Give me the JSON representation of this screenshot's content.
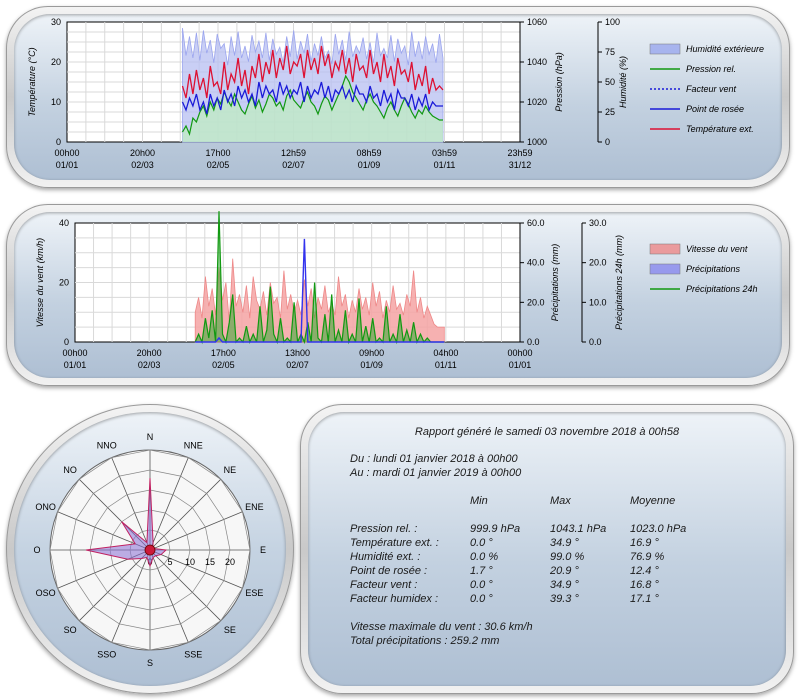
{
  "chart_data": [
    {
      "type": "line",
      "y_left_label": "Température (°C)",
      "y_right1_label": "Pression (hPa)",
      "y_right2_label": "Humidité (%)",
      "y_left_ticks": [
        "0",
        "10",
        "20",
        "30"
      ],
      "y_right1_ticks": [
        "1000",
        "1020",
        "1040",
        "1060"
      ],
      "y_right2_ticks": [
        "0",
        "25",
        "50",
        "75",
        "100"
      ],
      "ylim_left": [
        0,
        30
      ],
      "ylim_pressure": [
        1000,
        1060
      ],
      "ylim_humidity": [
        0,
        100
      ],
      "x_ticks": [
        {
          "time": "00h00",
          "date": "01/01"
        },
        {
          "time": "20h00",
          "date": "02/03"
        },
        {
          "time": "17h00",
          "date": "02/05"
        },
        {
          "time": "12h59",
          "date": "02/07"
        },
        {
          "time": "08h59",
          "date": "01/09"
        },
        {
          "time": "03h59",
          "date": "01/11"
        },
        {
          "time": "23h59",
          "date": "31/12"
        }
      ],
      "grid": true,
      "legend": [
        {
          "name": "Humidité extérieure",
          "color": "#9aa8ee",
          "style": "area"
        },
        {
          "name": "Pression rel.",
          "color": "#119911",
          "style": "line"
        },
        {
          "name": "Facteur vent",
          "color": "#1a1ad8",
          "style": "dotted"
        },
        {
          "name": "Point de rosée",
          "color": "#1a1ad8",
          "style": "line"
        },
        {
          "name": "Température ext.",
          "color": "#dd1133",
          "style": "line"
        }
      ],
      "data_start_fraction": 0.255,
      "data_end_fraction": 0.83,
      "series": {
        "humidity_pct": [
          95,
          72,
          88,
          70,
          91,
          68,
          93,
          74,
          85,
          66,
          90,
          78,
          82,
          64,
          88,
          72,
          92,
          70,
          80,
          67,
          89,
          75,
          84,
          70,
          91,
          68,
          86,
          73,
          79,
          66,
          88,
          71,
          93,
          69,
          84,
          74,
          90,
          67,
          82,
          72,
          88,
          70,
          76,
          65,
          90,
          73,
          85,
          68,
          92,
          71,
          80,
          74,
          87,
          69,
          83,
          66,
          91,
          72,
          78,
          70,
          89,
          67,
          86,
          74,
          80,
          64,
          92,
          71,
          84,
          69,
          88,
          73,
          82,
          66,
          90,
          70
        ],
        "temperature_c": [
          14,
          11,
          17,
          12,
          18,
          13,
          16,
          11,
          19,
          14,
          15,
          12,
          20,
          13,
          17,
          15,
          21,
          14,
          18,
          12,
          19,
          16,
          22,
          15,
          20,
          17,
          23,
          16,
          21,
          18,
          24,
          17,
          20,
          19,
          22,
          16,
          23,
          18,
          21,
          17,
          24,
          19,
          22,
          16,
          20,
          18,
          23,
          17,
          21,
          15,
          22,
          18,
          19,
          16,
          23,
          17,
          20,
          15,
          22,
          16,
          19,
          14,
          21,
          17,
          18,
          15,
          20,
          13,
          17,
          14,
          19,
          12,
          16,
          13,
          14,
          13
        ],
        "dewpoint_c": [
          10,
          8,
          11,
          9,
          12,
          8,
          10,
          7,
          12,
          9,
          11,
          8,
          13,
          10,
          12,
          9,
          14,
          11,
          13,
          10,
          12,
          9,
          15,
          11,
          14,
          12,
          13,
          10,
          15,
          12,
          14,
          11,
          13,
          12,
          15,
          10,
          14,
          11,
          13,
          12,
          15,
          11,
          14,
          10,
          13,
          12,
          14,
          11,
          13,
          10,
          14,
          12,
          12,
          10,
          14,
          11,
          12,
          9,
          13,
          10,
          12,
          8,
          13,
          11,
          11,
          9,
          12,
          8,
          11,
          9,
          12,
          8,
          10,
          9,
          9,
          9
        ],
        "pressure_hpa": [
          1005,
          1008,
          1004,
          1012,
          1010,
          1015,
          1018,
          1013,
          1020,
          1016,
          1022,
          1019,
          1025,
          1021,
          1018,
          1024,
          1020,
          1016,
          1014,
          1019,
          1023,
          1017,
          1021,
          1015,
          1019,
          1024,
          1022,
          1018,
          1020,
          1016,
          1023,
          1026,
          1021,
          1019,
          1017,
          1022,
          1025,
          1020,
          1018,
          1014,
          1019,
          1023,
          1021,
          1016,
          1020,
          1024,
          1028,
          1033,
          1030,
          1025,
          1022,
          1019,
          1016,
          1021,
          1024,
          1020,
          1018,
          1015,
          1012,
          1017,
          1020,
          1016,
          1013,
          1018,
          1022,
          1019,
          1015,
          1012,
          1016,
          1014,
          1018,
          1015,
          1013,
          1012,
          1011,
          1011
        ]
      }
    },
    {
      "type": "area",
      "y_left_label": "Vitesse du vent (km/h)",
      "y_right1_label": "Précipitations (mm)",
      "y_right2_label": "Précipitations 24h (mm)",
      "y_left_ticks": [
        "0",
        "20",
        "40"
      ],
      "y_right1_ticks": [
        "0.0",
        "20.0",
        "40.0",
        "60.0"
      ],
      "y_right2_ticks": [
        "0.0",
        "10.0",
        "20.0",
        "30.0"
      ],
      "ylim_left": [
        0,
        40
      ],
      "ylim_rain": [
        0,
        60
      ],
      "ylim_rain24": [
        0,
        30
      ],
      "x_ticks": [
        {
          "time": "00h00",
          "date": "01/01"
        },
        {
          "time": "20h00",
          "date": "02/03"
        },
        {
          "time": "17h00",
          "date": "02/05"
        },
        {
          "time": "13h00",
          "date": "02/07"
        },
        {
          "time": "09h00",
          "date": "01/09"
        },
        {
          "time": "04h00",
          "date": "01/11"
        },
        {
          "time": "00h00",
          "date": "01/01"
        }
      ],
      "grid": true,
      "legend": [
        {
          "name": "Vitesse du vent",
          "color": "#ee8888",
          "style": "area"
        },
        {
          "name": "Précipitations",
          "color": "#8888ee",
          "style": "area"
        },
        {
          "name": "Précipitations 24h",
          "color": "#119911",
          "style": "line"
        }
      ],
      "data_start_fraction": 0.27,
      "data_end_fraction": 0.83,
      "series": {
        "wind_kmh": [
          10,
          15,
          8,
          22,
          12,
          18,
          9,
          25,
          14,
          20,
          7,
          28,
          12,
          16,
          10,
          19,
          8,
          22,
          14,
          11,
          17,
          9,
          20,
          13,
          15,
          8,
          24,
          11,
          16,
          10,
          14,
          9,
          21,
          12,
          18,
          8,
          15,
          11,
          19,
          10,
          13,
          9,
          22,
          12,
          16,
          8,
          14,
          10,
          18,
          11,
          15,
          9,
          20,
          12,
          17,
          8,
          14,
          10,
          19,
          11,
          13,
          9,
          16,
          12,
          24,
          10,
          15,
          8,
          12,
          9,
          6,
          5,
          5,
          5
        ],
        "rain24_mm": [
          0,
          2,
          0,
          6,
          1,
          8,
          0,
          33,
          2,
          0,
          5,
          12,
          0,
          1,
          0,
          4,
          0,
          2,
          0,
          9,
          0,
          3,
          14,
          2,
          0,
          6,
          0,
          1,
          0,
          10,
          0,
          2,
          0,
          5,
          0,
          15,
          1,
          0,
          7,
          0,
          12,
          0,
          3,
          0,
          8,
          0,
          2,
          0,
          11,
          0,
          4,
          0,
          6,
          0,
          1,
          0,
          9,
          0,
          2,
          0,
          7,
          0,
          3,
          0,
          5,
          0,
          2,
          0,
          1,
          0,
          0,
          0,
          0,
          0
        ],
        "rain_mm": [
          0,
          0,
          0,
          0,
          0,
          0,
          0,
          2,
          0,
          0,
          0,
          0,
          0,
          0,
          0,
          0,
          0,
          0,
          0,
          0,
          0,
          0,
          0,
          0,
          0,
          0,
          0,
          0,
          0,
          0,
          0,
          0,
          52,
          0,
          0,
          0,
          0,
          0,
          0,
          0,
          0,
          0,
          0,
          0,
          0,
          0,
          0,
          0,
          0,
          0,
          0,
          0,
          0,
          0,
          0,
          0,
          0,
          0,
          0,
          0,
          0,
          0,
          0,
          0,
          0,
          0,
          0,
          0,
          0,
          0,
          0,
          0,
          0,
          0
        ]
      }
    },
    {
      "type": "radar",
      "directions": [
        "N",
        "NNE",
        "NE",
        "ENE",
        "E",
        "ESE",
        "SE",
        "SSE",
        "S",
        "SSO",
        "SO",
        "OSO",
        "O",
        "ONO",
        "NO",
        "NNO"
      ],
      "ring_labels": [
        "0",
        "5",
        "10",
        "15",
        "20"
      ],
      "rmax": 25,
      "values": [
        18,
        2,
        1,
        1,
        4,
        3,
        2,
        2,
        4,
        2,
        3,
        6,
        16,
        4,
        10,
        2
      ]
    }
  ],
  "report": {
    "title": "Rapport généré le samedi 03 novembre 2018 à 00h58",
    "from": "Du : lundi 01 janvier 2018 à 00h00",
    "to": "Au : mardi 01 janvier 2019 à 00h00",
    "headers": [
      "Min",
      "Max",
      "Moyenne"
    ],
    "rows": [
      {
        "label": "Pression rel. :",
        "min": "999.9 hPa",
        "max": "1043.1 hPa",
        "avg": "1023.0 hPa"
      },
      {
        "label": "Température ext. :",
        "min": "0.0 °",
        "max": "34.9 °",
        "avg": "16.9 °"
      },
      {
        "label": "Humidité ext. :",
        "min": "0.0 %",
        "max": "99.0 %",
        "avg": "76.9 %"
      },
      {
        "label": "Point de rosée :",
        "min": "1.7 °",
        "max": "20.9 °",
        "avg": "12.4 °"
      },
      {
        "label": "Facteur vent :",
        "min": "0.0 °",
        "max": "34.9 °",
        "avg": "16.8 °"
      },
      {
        "label": "Facteur humidex :",
        "min": "0.0 °",
        "max": "39.3 °",
        "avg": "17.1 °"
      }
    ],
    "max_wind": "Vitesse maximale du vent : 30.6 km/h",
    "total_rain": "Total précipitations : 259.2 mm"
  }
}
